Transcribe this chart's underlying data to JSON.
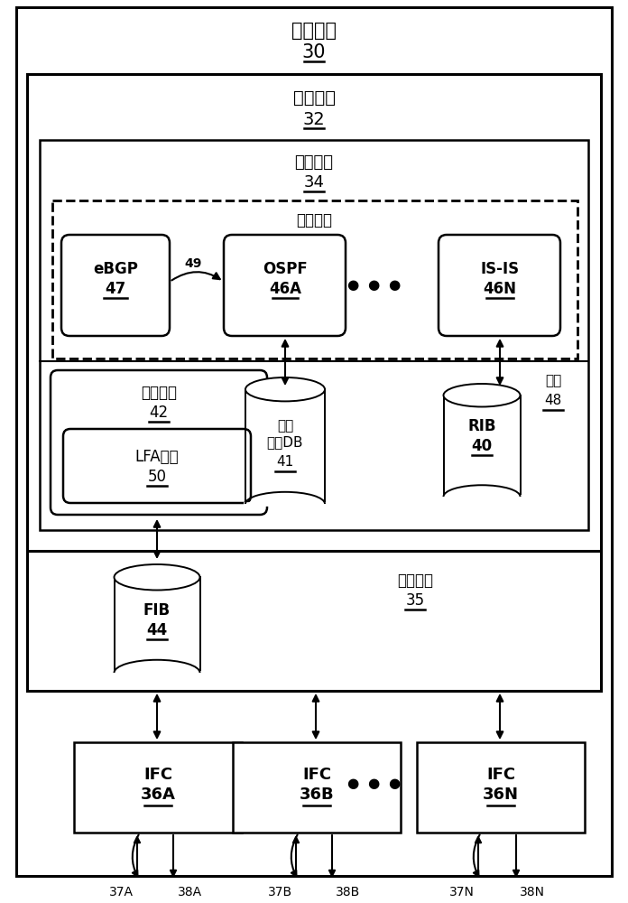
{
  "bg_color": "#ffffff",
  "border_color": "#000000",
  "title_device": "网络设备",
  "title_device_num": "30",
  "title_ctrl": "控制单元",
  "title_ctrl_num": "32",
  "title_route_comp": "路由组件",
  "title_route_comp_num": "34",
  "title_route_protocol": "路由协议",
  "title_route_select": "路由选择",
  "title_route_select_num": "42",
  "title_kernel": "内核",
  "title_kernel_num": "48",
  "title_forward_comp": "转发组件",
  "title_forward_comp_num": "35",
  "box_ebgp_label": "eBGP",
  "box_ebgp_num": "47",
  "box_ospf_label": "OSPF",
  "box_ospf_num": "46A",
  "box_isis_label": "IS-IS",
  "box_isis_num": "46N",
  "box_lfa_label": "LFA模块",
  "box_lfa_num": "50",
  "cylinder_linkstate_line1": "链路",
  "cylinder_linkstate_line2": "状态DB",
  "cylinder_linkstate_num": "41",
  "cylinder_rib_label": "RIB",
  "cylinder_rib_num": "40",
  "cylinder_fib_label": "FIB",
  "cylinder_fib_num": "44",
  "ifc_a_label": "IFC",
  "ifc_a_num": "36A",
  "ifc_b_label": "IFC",
  "ifc_b_num": "36B",
  "ifc_n_label": "IFC",
  "ifc_n_num": "36N",
  "arrow_label_49": "49",
  "label_37A": "37A",
  "label_38A": "38A",
  "label_37B": "37B",
  "label_38B": "38B",
  "label_37N": "37N",
  "label_38N": "38N",
  "font_size_title": 14,
  "font_size_label": 11,
  "font_size_small": 9
}
